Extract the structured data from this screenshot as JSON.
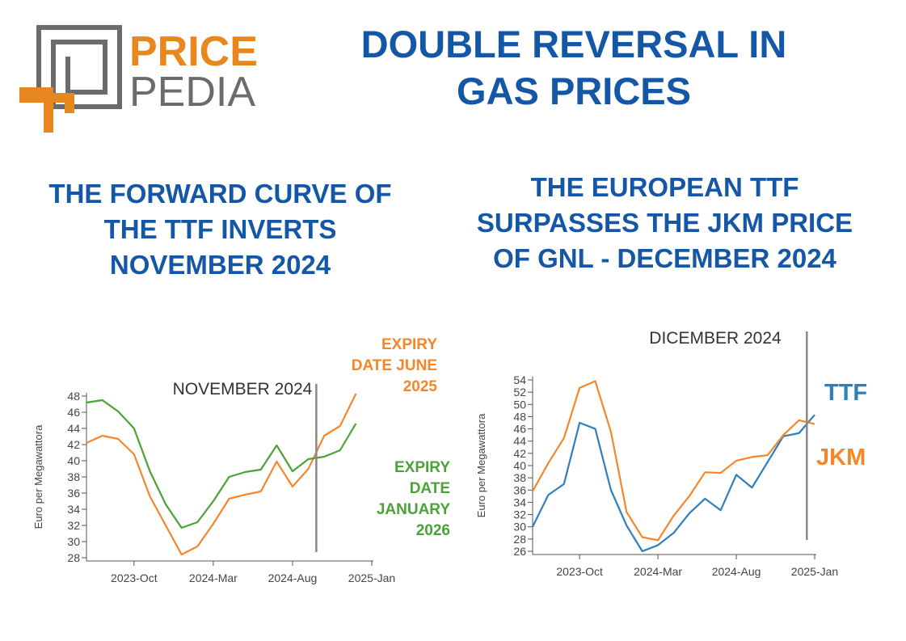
{
  "logo": {
    "word1": "PRICE",
    "word2": "PEDIA",
    "orange": "#e8871e",
    "gray": "#6b6b6b"
  },
  "title_lines": [
    "DOUBLE REVERSAL IN",
    "GAS PRICES"
  ],
  "left_heading_lines": [
    "THE FORWARD CURVE OF",
    "THE TTF INVERTS",
    "NOVEMBER 2024"
  ],
  "right_heading_lines": [
    "THE EUROPEAN TTF",
    "SURPASSES THE JKM PRICE",
    "OF GNL - DECEMBER 2024"
  ],
  "colors": {
    "title_blue": "#1457a6",
    "orange": "#f5862a",
    "green": "#4aa336",
    "blue": "#2f7fbd",
    "gray_text": "#333333"
  },
  "chart_data": [
    {
      "type": "line",
      "ylabel": "Euro per Megawattora",
      "ylim": [
        28,
        48
      ],
      "yticks": [
        28,
        30,
        32,
        34,
        36,
        38,
        40,
        42,
        44,
        46,
        48
      ],
      "xticks": [
        {
          "label": "2023-Oct",
          "x": 3
        },
        {
          "label": "2024-Mar",
          "x": 8
        },
        {
          "label": "2024-Aug",
          "x": 13
        },
        {
          "label": "2025-Jan",
          "x": 18
        }
      ],
      "xlim": [
        0,
        18
      ],
      "vline": {
        "x": 14.5,
        "label": "NOVEMBER 2024"
      },
      "series": [
        {
          "name": "EXPIRY DATE JUNE 2025",
          "label_lines": [
            "EXPIRY",
            "DATE JUNE",
            "2025"
          ],
          "color": "#f5862a",
          "values": [
            42.2,
            43.1,
            42.7,
            40.8,
            35.6,
            32.0,
            28.4,
            29.4,
            32.2,
            35.3,
            35.8,
            36.2,
            39.9,
            36.8,
            39.0,
            43.1,
            44.3,
            48.3
          ]
        },
        {
          "name": "EXPIRY DATE JANUARY 2026",
          "label_lines": [
            "EXPIRY",
            "DATE",
            "JANUARY",
            "2026"
          ],
          "color": "#4aa336",
          "values": [
            47.2,
            47.5,
            46.1,
            44.0,
            38.7,
            34.6,
            31.7,
            32.4,
            35.0,
            38.0,
            38.6,
            38.9,
            41.9,
            38.7,
            40.2,
            40.5,
            41.3,
            44.6
          ]
        }
      ]
    },
    {
      "type": "line",
      "ylabel": "Euro per Megawattora",
      "ylim": [
        26,
        54
      ],
      "yticks": [
        26,
        28,
        30,
        32,
        34,
        36,
        38,
        40,
        42,
        44,
        46,
        48,
        50,
        52,
        54
      ],
      "xticks": [
        {
          "label": "2023-Oct",
          "x": 3
        },
        {
          "label": "2024-Mar",
          "x": 8
        },
        {
          "label": "2024-Aug",
          "x": 13
        },
        {
          "label": "2025-Jan",
          "x": 18
        }
      ],
      "xlim": [
        0,
        18
      ],
      "vline": {
        "x": 17.5,
        "label": "DICEMBER 2024"
      },
      "series": [
        {
          "name": "TTF",
          "label_lines": [
            "TTF"
          ],
          "color": "#2f7fbd",
          "values": [
            30.0,
            35.2,
            37.0,
            47.0,
            46.0,
            36.0,
            30.2,
            26.0,
            27.0,
            29.0,
            32.2,
            34.6,
            32.7,
            38.5,
            36.4,
            40.6,
            44.8,
            45.3,
            48.3
          ]
        },
        {
          "name": "JKM",
          "label_lines": [
            "JKM"
          ],
          "color": "#f5862a",
          "values": [
            35.8,
            40.4,
            44.5,
            52.7,
            53.8,
            45.5,
            32.4,
            28.3,
            27.8,
            31.8,
            35.0,
            38.9,
            38.8,
            40.8,
            41.4,
            41.7,
            45.0,
            47.4,
            46.8
          ]
        }
      ]
    }
  ]
}
